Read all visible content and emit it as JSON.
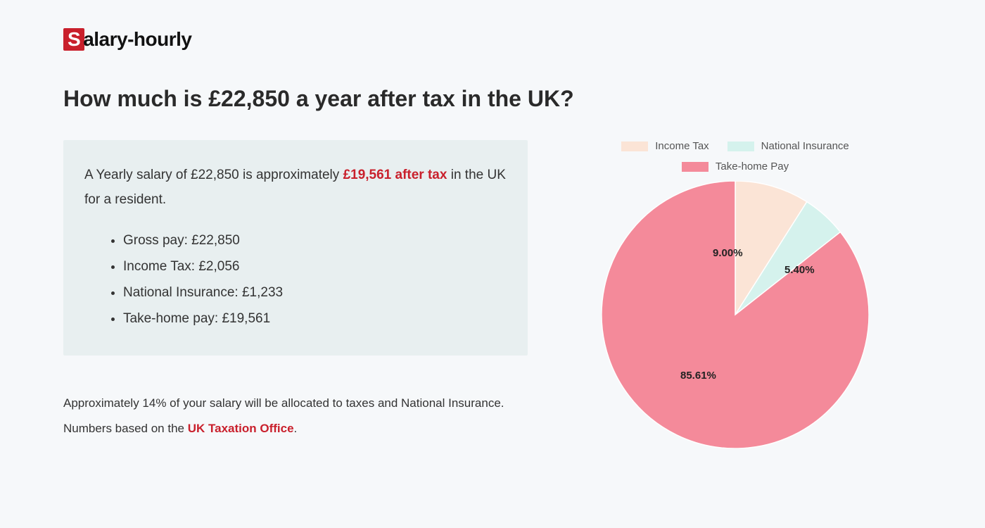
{
  "logo": {
    "text": "alary-hourly"
  },
  "title": "How much is £22,850 a year after tax in the UK?",
  "summary": {
    "pre": "A Yearly salary of £22,850 is approximately ",
    "highlight": "£19,561 after tax",
    "post": " in the UK for a resident.",
    "items": [
      "Gross pay: £22,850",
      "Income Tax: £2,056",
      "National Insurance: £1,233",
      "Take-home pay: £19,561"
    ]
  },
  "footnote": {
    "line1": "Approximately 14% of your salary will be allocated to taxes and National Insurance.",
    "line2_pre": "Numbers based on the ",
    "line2_link": "UK Taxation Office",
    "line2_post": "."
  },
  "chart": {
    "type": "pie",
    "background_color": "#f6f8fa",
    "radius": 190,
    "slices": [
      {
        "label": "Income Tax",
        "value": 9.0,
        "color": "#fbe4d6",
        "display": "9.00%"
      },
      {
        "label": "National Insurance",
        "value": 5.4,
        "color": "#d5f2ed",
        "display": "5.40%"
      },
      {
        "label": "Take-home Pay",
        "value": 85.61,
        "color": "#f48a9a",
        "display": "85.61%"
      }
    ],
    "label_fontsize": 15,
    "label_fontweight": 700,
    "legend_swatch_w": 38,
    "legend_swatch_h": 14
  }
}
